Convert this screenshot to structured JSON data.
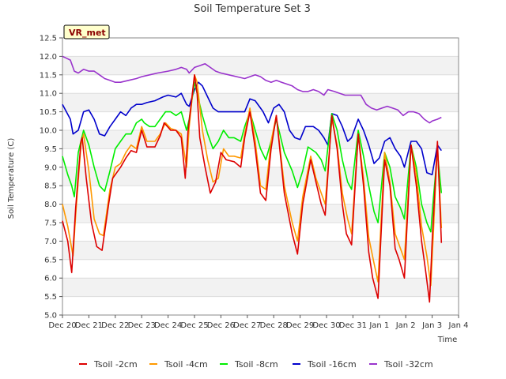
{
  "chart_data": {
    "type": "line",
    "title": "Soil Temperature Set 3",
    "xlabel": "Time",
    "ylabel": "Soil Temperature (C)",
    "badge": "VR_met",
    "xlim": [
      0,
      15
    ],
    "ylim": [
      5.0,
      12.5
    ],
    "y_ticks": [
      5.0,
      5.5,
      6.0,
      6.5,
      7.0,
      7.5,
      8.0,
      8.5,
      9.0,
      9.5,
      10.0,
      10.5,
      11.0,
      11.5,
      12.0,
      12.5
    ],
    "y_tick_labels": [
      "5.0",
      "5.5",
      "6.0",
      "6.5",
      "7.0",
      "7.5",
      "8.0",
      "8.5",
      "9.0",
      "9.5",
      "10.0",
      "10.5",
      "11.0",
      "11.5",
      "12.0",
      "12.5"
    ],
    "x_ticks": [
      0,
      1,
      2,
      3,
      4,
      5,
      6,
      7,
      8,
      9,
      10,
      11,
      12,
      13,
      14,
      15
    ],
    "x_tick_labels": [
      "Dec 20",
      "Dec 21",
      "Dec 22",
      "Dec 23",
      "Dec 24",
      "Dec 25",
      "Dec 26",
      "Dec 27",
      "Dec 28",
      "Dec 29",
      "Dec 30",
      "Dec 31",
      "Jan 1",
      "Jan 2",
      "Jan 3",
      "Jan 4"
    ],
    "series": [
      {
        "name": "Tsoil -2cm",
        "color": "#dd0000",
        "x": [
          0.0,
          0.2,
          0.35,
          0.5,
          0.7,
          0.75,
          0.9,
          1.1,
          1.3,
          1.5,
          1.75,
          1.9,
          2.2,
          2.4,
          2.6,
          2.8,
          3.0,
          3.2,
          3.5,
          3.7,
          3.85,
          4.1,
          4.3,
          4.5,
          4.65,
          4.75,
          5.0,
          5.1,
          5.2,
          5.4,
          5.6,
          5.8,
          6.0,
          6.2,
          6.5,
          6.75,
          6.9,
          7.1,
          7.3,
          7.5,
          7.7,
          7.9,
          8.1,
          8.4,
          8.7,
          8.9,
          9.1,
          9.4,
          9.6,
          9.8,
          9.95,
          10.2,
          10.4,
          10.6,
          10.75,
          10.95,
          11.2,
          11.4,
          11.6,
          11.75,
          11.95,
          12.2,
          12.4,
          12.6,
          12.75,
          12.95,
          13.2,
          13.4,
          13.6,
          13.75,
          13.9,
          14.0,
          14.2,
          14.35
        ],
        "values": [
          7.55,
          7.0,
          6.15,
          7.9,
          9.7,
          9.8,
          8.7,
          7.5,
          6.85,
          6.75,
          8.0,
          8.7,
          9.0,
          9.25,
          9.45,
          9.4,
          10.0,
          9.55,
          9.55,
          9.85,
          10.2,
          10.0,
          10.0,
          9.8,
          8.7,
          9.95,
          11.5,
          11.0,
          9.8,
          9.0,
          8.3,
          8.6,
          9.4,
          9.2,
          9.15,
          9.0,
          9.8,
          10.5,
          9.5,
          8.3,
          8.1,
          9.5,
          10.4,
          8.3,
          7.2,
          6.65,
          8.0,
          9.2,
          8.6,
          8.0,
          7.7,
          10.4,
          9.5,
          8.0,
          7.2,
          6.9,
          9.9,
          8.5,
          6.7,
          6.0,
          5.45,
          9.2,
          8.5,
          6.8,
          6.5,
          6.0,
          9.6,
          8.5,
          7.0,
          6.2,
          5.35,
          7.0,
          9.7,
          6.95
        ]
      },
      {
        "name": "Tsoil -4cm",
        "color": "#ff9900",
        "x": [
          0.0,
          0.2,
          0.4,
          0.5,
          0.7,
          0.8,
          1.0,
          1.2,
          1.4,
          1.55,
          1.8,
          2.0,
          2.2,
          2.4,
          2.6,
          2.8,
          3.0,
          3.2,
          3.5,
          3.7,
          3.9,
          4.1,
          4.3,
          4.5,
          4.7,
          4.8,
          5.0,
          5.1,
          5.3,
          5.5,
          5.7,
          5.9,
          6.1,
          6.3,
          6.5,
          6.75,
          6.9,
          7.1,
          7.3,
          7.5,
          7.7,
          7.9,
          8.1,
          8.4,
          8.7,
          8.9,
          9.1,
          9.4,
          9.6,
          9.8,
          9.95,
          10.2,
          10.4,
          10.6,
          10.8,
          10.95,
          11.2,
          11.4,
          11.6,
          11.8,
          11.95,
          12.2,
          12.4,
          12.6,
          12.8,
          12.95,
          13.2,
          13.4,
          13.6,
          13.8,
          13.95,
          14.05,
          14.2,
          14.35
        ],
        "values": [
          8.0,
          7.4,
          6.6,
          7.7,
          9.6,
          9.9,
          8.9,
          7.6,
          7.2,
          7.15,
          8.4,
          9.0,
          9.1,
          9.4,
          9.6,
          9.5,
          10.1,
          9.7,
          9.7,
          9.9,
          10.2,
          10.05,
          10.0,
          9.9,
          9.0,
          10.1,
          11.5,
          11.3,
          10.0,
          9.2,
          8.6,
          8.7,
          9.5,
          9.3,
          9.3,
          9.25,
          9.9,
          10.6,
          9.7,
          8.5,
          8.4,
          9.7,
          10.4,
          8.5,
          7.5,
          7.0,
          8.2,
          9.3,
          8.7,
          8.3,
          8.0,
          10.3,
          9.6,
          8.3,
          7.6,
          7.2,
          9.9,
          8.7,
          7.1,
          6.4,
          5.9,
          9.4,
          8.6,
          7.2,
          6.8,
          6.5,
          9.6,
          8.8,
          7.4,
          6.6,
          5.8,
          7.3,
          9.6,
          7.35
        ]
      },
      {
        "name": "Tsoil -8cm",
        "color": "#00ee00",
        "x": [
          0.0,
          0.2,
          0.35,
          0.45,
          0.6,
          0.8,
          1.0,
          1.2,
          1.4,
          1.6,
          1.8,
          2.0,
          2.2,
          2.4,
          2.6,
          2.8,
          3.0,
          3.1,
          3.3,
          3.5,
          3.7,
          3.9,
          4.1,
          4.3,
          4.5,
          4.7,
          4.8,
          5.0,
          5.1,
          5.3,
          5.5,
          5.7,
          5.9,
          6.1,
          6.3,
          6.5,
          6.75,
          6.9,
          7.1,
          7.3,
          7.5,
          7.7,
          7.9,
          8.1,
          8.4,
          8.7,
          8.9,
          9.1,
          9.3,
          9.6,
          9.8,
          9.95,
          10.2,
          10.4,
          10.6,
          10.8,
          10.95,
          11.2,
          11.4,
          11.6,
          11.8,
          11.95,
          12.2,
          12.4,
          12.6,
          12.8,
          12.95,
          13.2,
          13.4,
          13.6,
          13.8,
          13.95,
          14.05,
          14.2,
          14.35
        ],
        "values": [
          9.3,
          8.8,
          8.5,
          8.2,
          9.4,
          10.0,
          9.6,
          9.0,
          8.5,
          8.35,
          8.9,
          9.5,
          9.7,
          9.9,
          9.9,
          10.2,
          10.3,
          10.2,
          10.1,
          10.1,
          10.3,
          10.5,
          10.5,
          10.4,
          10.5,
          10.0,
          10.3,
          11.3,
          11.0,
          10.4,
          9.9,
          9.5,
          9.7,
          10.0,
          9.8,
          9.8,
          9.7,
          10.1,
          10.5,
          10.0,
          9.5,
          9.2,
          9.7,
          10.3,
          9.4,
          8.9,
          8.45,
          8.9,
          9.55,
          9.4,
          9.2,
          8.9,
          10.45,
          10.0,
          9.2,
          8.6,
          8.4,
          10.0,
          9.3,
          8.5,
          7.8,
          7.5,
          9.4,
          9.0,
          8.2,
          7.9,
          7.6,
          9.6,
          9.0,
          8.0,
          7.5,
          7.25,
          8.2,
          9.4,
          8.3
        ]
      },
      {
        "name": "Tsoil -16cm",
        "color": "#0000cc",
        "x": [
          0.0,
          0.15,
          0.3,
          0.4,
          0.6,
          0.8,
          1.0,
          1.2,
          1.4,
          1.6,
          1.8,
          2.0,
          2.2,
          2.4,
          2.6,
          2.8,
          3.0,
          3.2,
          3.5,
          3.8,
          4.0,
          4.3,
          4.5,
          4.7,
          4.8,
          5.0,
          5.15,
          5.3,
          5.5,
          5.7,
          5.9,
          6.1,
          6.3,
          6.6,
          6.9,
          7.1,
          7.3,
          7.5,
          7.6,
          7.8,
          8.0,
          8.2,
          8.4,
          8.6,
          8.8,
          9.0,
          9.2,
          9.5,
          9.7,
          9.9,
          10.05,
          10.2,
          10.4,
          10.6,
          10.8,
          10.95,
          11.2,
          11.4,
          11.6,
          11.8,
          12.0,
          12.2,
          12.4,
          12.6,
          12.8,
          12.95,
          13.2,
          13.4,
          13.6,
          13.8,
          14.0,
          14.2,
          14.35
        ],
        "values": [
          10.7,
          10.5,
          10.3,
          9.9,
          10.0,
          10.5,
          10.55,
          10.3,
          9.9,
          9.85,
          10.1,
          10.3,
          10.5,
          10.4,
          10.6,
          10.7,
          10.7,
          10.75,
          10.8,
          10.9,
          10.95,
          10.9,
          11.0,
          10.7,
          10.65,
          11.1,
          11.3,
          11.2,
          10.9,
          10.6,
          10.5,
          10.5,
          10.5,
          10.5,
          10.5,
          10.85,
          10.8,
          10.6,
          10.5,
          10.2,
          10.6,
          10.7,
          10.5,
          10.0,
          9.8,
          9.75,
          10.1,
          10.1,
          10.0,
          9.8,
          9.6,
          10.45,
          10.4,
          10.1,
          9.7,
          9.8,
          10.3,
          10.0,
          9.6,
          9.1,
          9.25,
          9.7,
          9.8,
          9.5,
          9.3,
          9.0,
          9.7,
          9.7,
          9.5,
          8.85,
          8.8,
          9.6,
          9.45
        ]
      },
      {
        "name": "Tsoil -32cm",
        "color": "#9933cc",
        "x": [
          0.0,
          0.15,
          0.3,
          0.45,
          0.6,
          0.8,
          1.0,
          1.2,
          1.4,
          1.6,
          1.8,
          2.0,
          2.2,
          2.5,
          2.8,
          3.0,
          3.3,
          3.6,
          4.0,
          4.3,
          4.5,
          4.7,
          4.8,
          5.0,
          5.2,
          5.4,
          5.6,
          5.8,
          6.0,
          6.3,
          6.6,
          6.9,
          7.1,
          7.3,
          7.5,
          7.7,
          7.9,
          8.1,
          8.3,
          8.5,
          8.7,
          8.9,
          9.1,
          9.3,
          9.5,
          9.7,
          9.9,
          10.05,
          10.3,
          10.5,
          10.7,
          10.9,
          11.1,
          11.3,
          11.5,
          11.7,
          11.9,
          12.1,
          12.3,
          12.5,
          12.7,
          12.9,
          13.1,
          13.3,
          13.5,
          13.7,
          13.9,
          14.0,
          14.2,
          14.35
        ],
        "values": [
          12.0,
          11.95,
          11.9,
          11.6,
          11.55,
          11.65,
          11.6,
          11.6,
          11.5,
          11.4,
          11.35,
          11.3,
          11.3,
          11.35,
          11.4,
          11.45,
          11.5,
          11.55,
          11.6,
          11.65,
          11.7,
          11.65,
          11.55,
          11.7,
          11.75,
          11.8,
          11.7,
          11.6,
          11.55,
          11.5,
          11.45,
          11.4,
          11.45,
          11.5,
          11.45,
          11.35,
          11.3,
          11.35,
          11.3,
          11.25,
          11.2,
          11.1,
          11.05,
          11.05,
          11.1,
          11.05,
          10.95,
          11.1,
          11.05,
          11.0,
          10.95,
          10.95,
          10.95,
          10.95,
          10.7,
          10.6,
          10.55,
          10.6,
          10.65,
          10.6,
          10.55,
          10.4,
          10.5,
          10.5,
          10.45,
          10.3,
          10.2,
          10.25,
          10.3,
          10.35
        ]
      }
    ]
  }
}
